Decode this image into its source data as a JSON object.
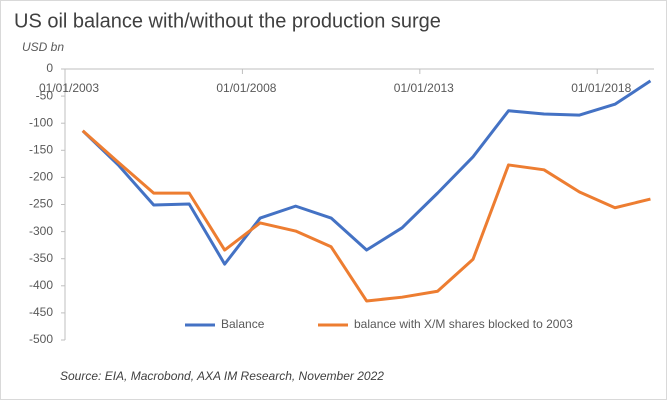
{
  "chart_data": {
    "type": "line",
    "title": "US oil balance with/without the production surge",
    "y_label": "USD bn",
    "source": "Source: EIA, Macrobond, AXA IM Research, November 2022",
    "x": [
      2003.5,
      2004.5,
      2005.5,
      2006.5,
      2007.5,
      2008.5,
      2009.5,
      2010.5,
      2011.5,
      2012.5,
      2013.5,
      2014.5,
      2015.5,
      2016.5,
      2017.5,
      2018.5,
      2019.5
    ],
    "series": [
      {
        "name": "Balance",
        "color": "#4472c4",
        "values": [
          -114,
          -177,
          -251,
          -249,
          -360,
          -275,
          -253,
          -275,
          -334,
          -293,
          -229,
          -162,
          -77,
          -83,
          -85,
          -65,
          -22
        ]
      },
      {
        "name": "balance with X/M shares blocked to 2003",
        "color": "#ed7d31",
        "values": [
          -114,
          -172,
          -229,
          -229,
          -334,
          -284,
          -299,
          -328,
          -428,
          -421,
          -410,
          -351,
          -177,
          -186,
          -227,
          -256,
          -240
        ]
      }
    ],
    "xlim": [
      2003,
      2019.6
    ],
    "xticks": [
      {
        "value": 2003,
        "label": "01/01/2003"
      },
      {
        "value": 2008,
        "label": "01/01/2008"
      },
      {
        "value": 2013,
        "label": "01/01/2013"
      },
      {
        "value": 2018,
        "label": "01/01/2018"
      }
    ],
    "ylim": [
      -500,
      0
    ],
    "yticks": [
      -500,
      -450,
      -400,
      -350,
      -300,
      -250,
      -200,
      -150,
      -100,
      -50,
      0
    ],
    "grid": false,
    "legend": "bottom"
  }
}
